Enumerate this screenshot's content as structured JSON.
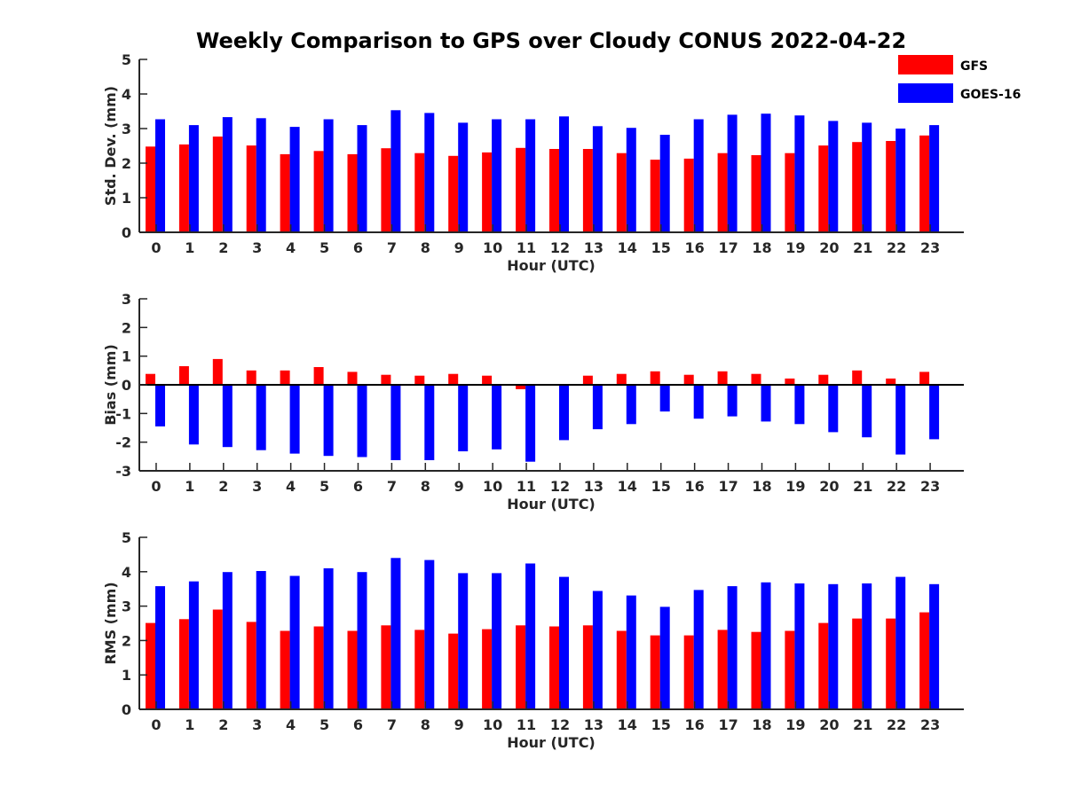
{
  "chart_data": {
    "title": "Weekly Comparison to GPS over Cloudy CONUS 2022-04-22",
    "type": "bar",
    "legend": {
      "placement": "top-right",
      "entries": [
        {
          "name": "GFS",
          "color": "#ff0000"
        },
        {
          "name": "GOES-16",
          "color": "#0000ff"
        }
      ]
    },
    "panels": [
      {
        "type": "bar",
        "xlabel": "Hour (UTC)",
        "ylabel": "Std. Dev. (mm)",
        "ylim": [
          0,
          5
        ],
        "yticks": [
          0,
          1,
          2,
          3,
          4,
          5
        ],
        "categories": [
          "0",
          "1",
          "2",
          "3",
          "4",
          "5",
          "6",
          "7",
          "8",
          "9",
          "10",
          "11",
          "12",
          "13",
          "14",
          "15",
          "16",
          "17",
          "18",
          "19",
          "20",
          "21",
          "22",
          "23"
        ],
        "series": [
          {
            "name": "GFS",
            "color": "#ff0000",
            "values": [
              2.48,
              2.54,
              2.77,
              2.51,
              2.26,
              2.35,
              2.26,
              2.43,
              2.29,
              2.21,
              2.31,
              2.44,
              2.41,
              2.41,
              2.29,
              2.1,
              2.13,
              2.29,
              2.23,
              2.29,
              2.51,
              2.61,
              2.64,
              2.8
            ]
          },
          {
            "name": "GOES-16",
            "color": "#0000ff",
            "values": [
              3.27,
              3.1,
              3.33,
              3.3,
              3.05,
              3.27,
              3.1,
              3.53,
              3.45,
              3.17,
              3.27,
              3.27,
              3.35,
              3.07,
              3.02,
              2.82,
              3.27,
              3.4,
              3.43,
              3.38,
              3.22,
              3.17,
              3.0,
              3.1
            ]
          }
        ]
      },
      {
        "type": "bar",
        "xlabel": "Hour (UTC)",
        "ylabel": "Bias (mm)",
        "ylim": [
          -3,
          3
        ],
        "yticks": [
          -3,
          -2,
          -1,
          0,
          1,
          2,
          3
        ],
        "categories": [
          "0",
          "1",
          "2",
          "3",
          "4",
          "5",
          "6",
          "7",
          "8",
          "9",
          "10",
          "11",
          "12",
          "13",
          "14",
          "15",
          "16",
          "17",
          "18",
          "19",
          "20",
          "21",
          "22",
          "23"
        ],
        "series": [
          {
            "name": "GFS",
            "color": "#ff0000",
            "values": [
              0.38,
              0.65,
              0.9,
              0.5,
              0.5,
              0.62,
              0.45,
              0.35,
              0.32,
              0.38,
              0.32,
              -0.15,
              0.0,
              0.32,
              0.38,
              0.47,
              0.35,
              0.47,
              0.38,
              0.22,
              0.35,
              0.5,
              0.22,
              0.45
            ]
          },
          {
            "name": "GOES-16",
            "color": "#0000ff",
            "values": [
              -1.45,
              -2.08,
              -2.17,
              -2.28,
              -2.4,
              -2.48,
              -2.52,
              -2.63,
              -2.63,
              -2.32,
              -2.25,
              -2.68,
              -1.93,
              -1.55,
              -1.37,
              -0.93,
              -1.18,
              -1.1,
              -1.28,
              -1.37,
              -1.65,
              -1.83,
              -2.43,
              -1.9
            ]
          }
        ]
      },
      {
        "type": "bar",
        "xlabel": "Hour (UTC)",
        "ylabel": "RMS (mm)",
        "ylim": [
          0,
          5
        ],
        "yticks": [
          0,
          1,
          2,
          3,
          4,
          5
        ],
        "categories": [
          "0",
          "1",
          "2",
          "3",
          "4",
          "5",
          "6",
          "7",
          "8",
          "9",
          "10",
          "11",
          "12",
          "13",
          "14",
          "15",
          "16",
          "17",
          "18",
          "19",
          "20",
          "21",
          "22",
          "23"
        ],
        "series": [
          {
            "name": "GFS",
            "color": "#ff0000",
            "values": [
              2.51,
              2.62,
              2.9,
              2.54,
              2.28,
              2.41,
              2.28,
              2.44,
              2.31,
              2.2,
              2.33,
              2.44,
              2.41,
              2.44,
              2.28,
              2.15,
              2.15,
              2.31,
              2.25,
              2.28,
              2.51,
              2.64,
              2.64,
              2.82
            ]
          },
          {
            "name": "GOES-16",
            "color": "#0000ff",
            "values": [
              3.58,
              3.72,
              3.99,
              4.02,
              3.88,
              4.1,
              3.99,
              4.4,
              4.34,
              3.96,
              3.96,
              4.24,
              3.85,
              3.44,
              3.31,
              2.98,
              3.47,
              3.58,
              3.69,
              3.66,
              3.64,
              3.66,
              3.85,
              3.64
            ]
          }
        ]
      }
    ]
  }
}
